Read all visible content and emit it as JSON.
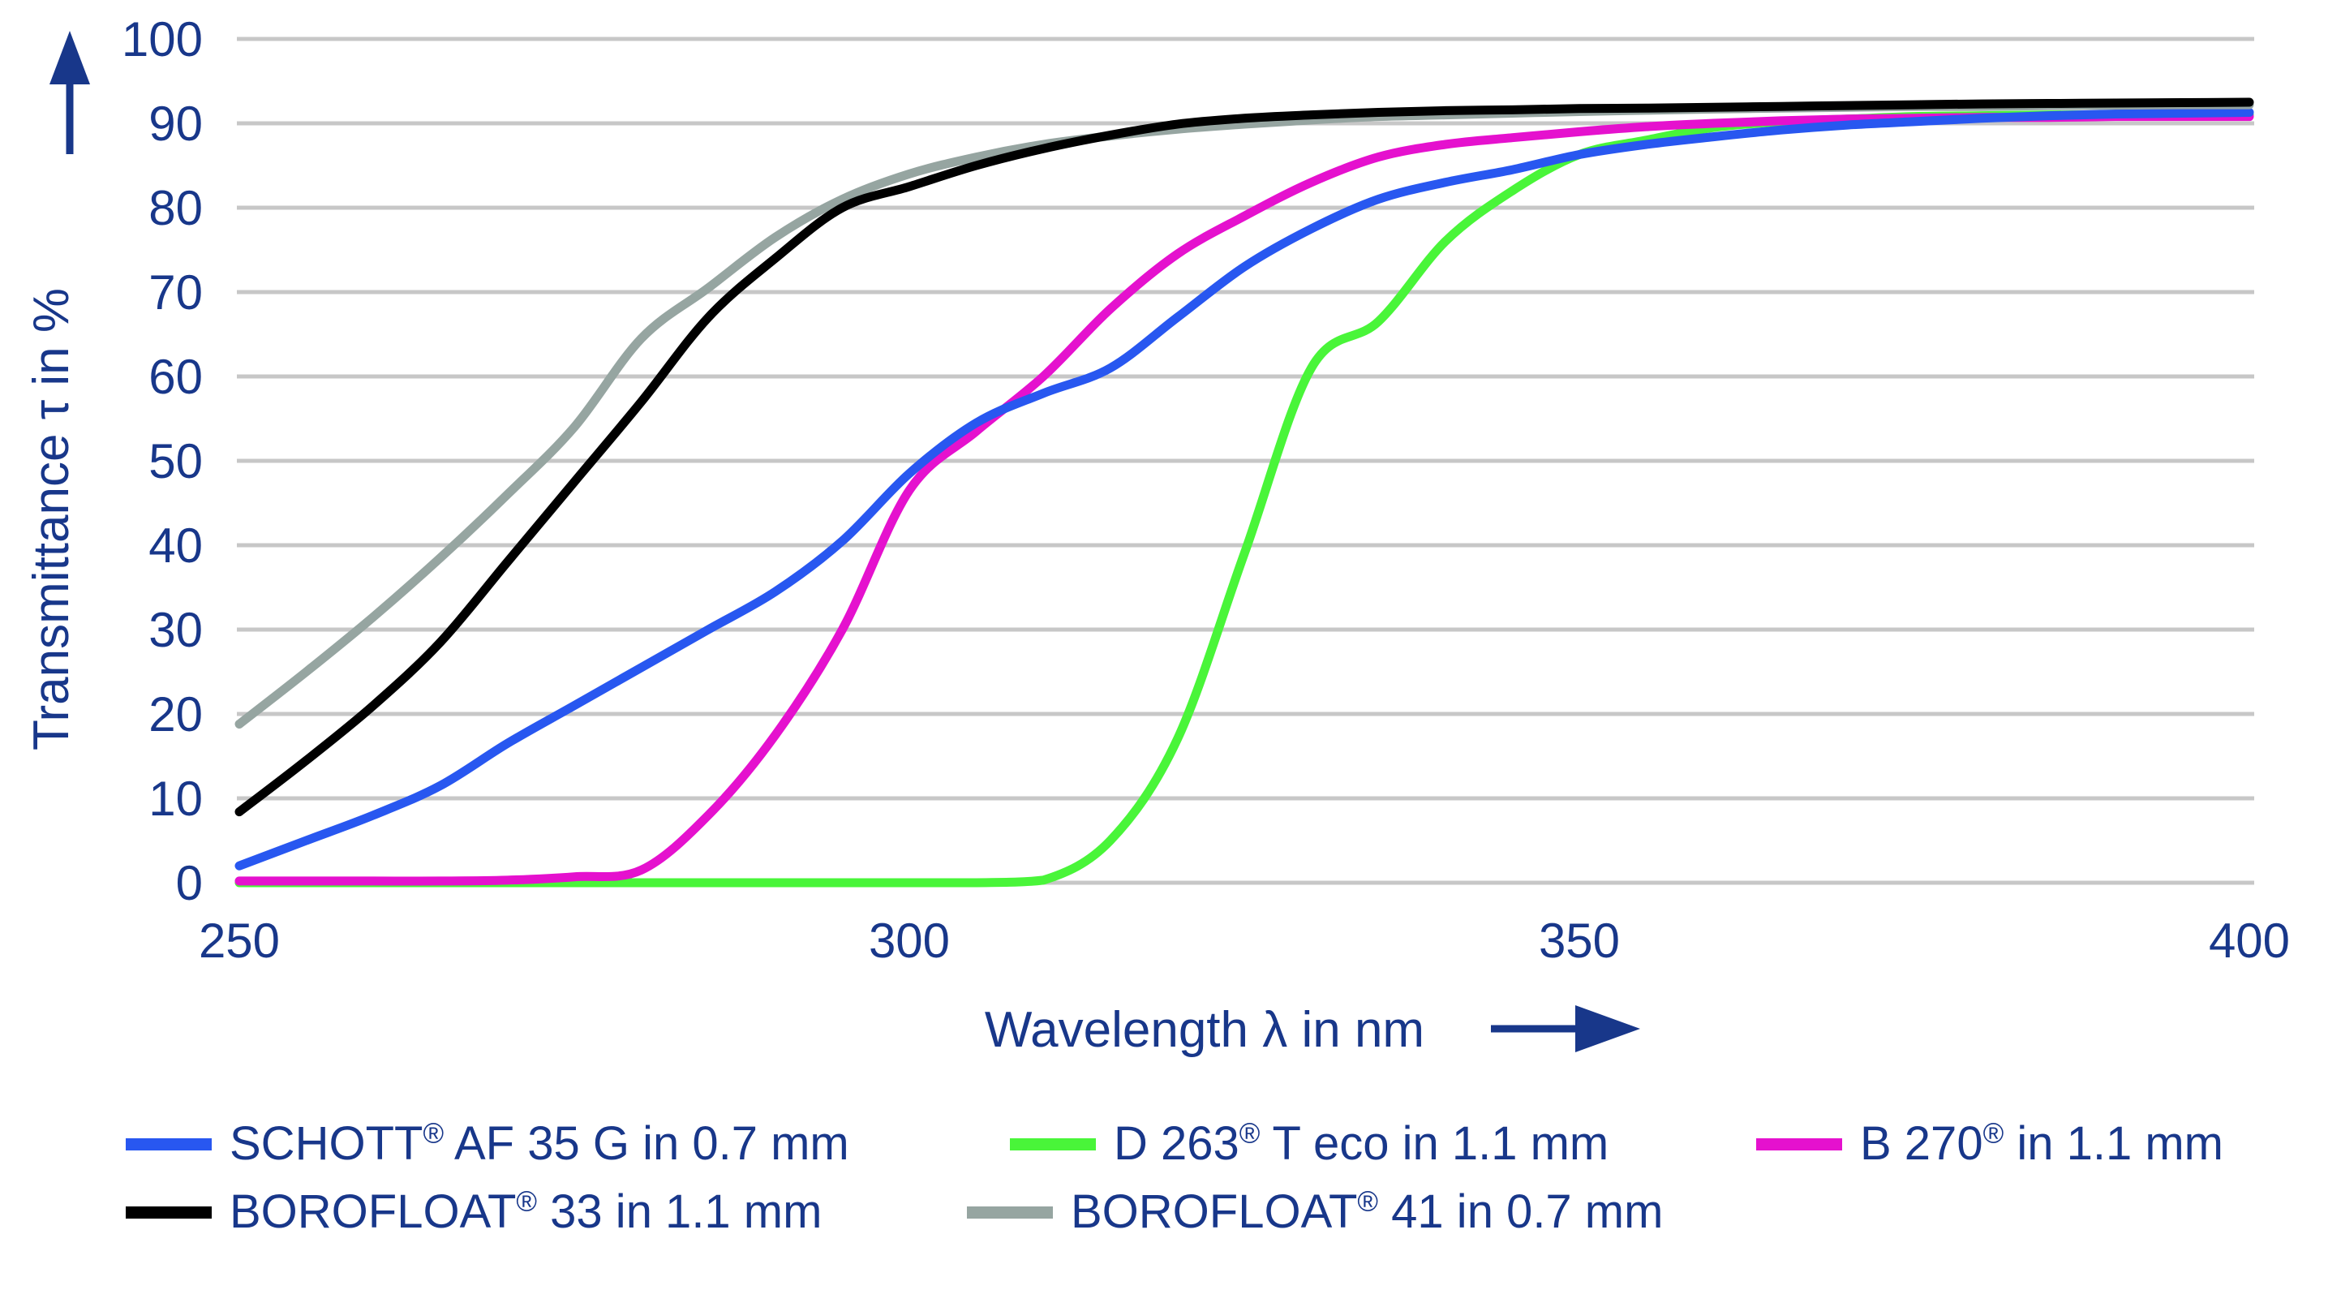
{
  "y_axis": {
    "label": "Transmittance τ in %",
    "ticks": [
      100,
      90,
      80,
      70,
      60,
      50,
      40,
      30,
      20,
      10,
      0
    ],
    "min": 0,
    "max": 100
  },
  "x_axis": {
    "label": "Wavelength λ in nm",
    "ticks": [
      250,
      300,
      350,
      400
    ],
    "min": 250,
    "max": 400
  },
  "colors": {
    "axis_text": "#18378a",
    "grid": "#c7c7c7",
    "blue": "#2857f0",
    "green": "#49f539",
    "magenta": "#e511ce",
    "black": "#000000",
    "gray": "#96a5a1"
  },
  "legend": {
    "reg_symbol": "®",
    "rows": [
      [
        {
          "color": "blue",
          "pre": "SCHOTT",
          "post": " AF 35 G in 0.7 mm"
        },
        {
          "color": "green",
          "pre": "D 263",
          "post": " T eco in 1.1 mm"
        },
        {
          "color": "magenta",
          "pre": "B 270",
          "post": " in 1.1 mm"
        }
      ],
      [
        {
          "color": "black",
          "pre": "BOROFLOAT",
          "post": " 33 in 1.1 mm"
        },
        {
          "color": "gray",
          "pre": "BOROFLOAT",
          "post": " 41 in 0.7 mm"
        }
      ]
    ]
  },
  "chart_data": {
    "type": "line",
    "title": "",
    "xlabel": "Wavelength λ in nm",
    "ylabel": "Transmittance τ in %",
    "xlim": [
      250,
      400
    ],
    "ylim": [
      0,
      100
    ],
    "grid": "horizontal",
    "legend_position": "bottom",
    "x": [
      250,
      255,
      260,
      265,
      270,
      275,
      280,
      285,
      290,
      295,
      300,
      305,
      310,
      315,
      320,
      325,
      330,
      335,
      340,
      345,
      350,
      355,
      360,
      365,
      370,
      375,
      380,
      385,
      390,
      395,
      400
    ],
    "series": [
      {
        "name": "SCHOTT® AF 35 G in 0.7 mm",
        "color": "blue",
        "values": [
          2,
          5,
          8,
          11.5,
          16.5,
          21,
          25.5,
          30,
          34.5,
          40.5,
          48.5,
          54.5,
          58,
          61,
          67,
          73,
          77.5,
          81,
          83,
          84.5,
          86.3,
          87.5,
          88.4,
          89.2,
          89.8,
          90.2,
          90.6,
          90.9,
          91.1,
          91.2,
          91.3
        ]
      },
      {
        "name": "D 263® T eco in 1.1 mm",
        "color": "green",
        "values": [
          0,
          0,
          0,
          0,
          0,
          0,
          0,
          0,
          0,
          0,
          0,
          0,
          0.3,
          5,
          17,
          39,
          61,
          66.5,
          76,
          82,
          86.3,
          88,
          89.5,
          90.2,
          90.5,
          90.8,
          90.9,
          91,
          91,
          91,
          91
        ]
      },
      {
        "name": "B 270® in 1.1 mm",
        "color": "magenta",
        "values": [
          0.2,
          0.2,
          0.2,
          0.2,
          0.3,
          0.7,
          1.5,
          8,
          17.5,
          30,
          46.5,
          53.5,
          60,
          68,
          74.5,
          79,
          83,
          86,
          87.5,
          88.3,
          89,
          89.6,
          90,
          90.3,
          90.5,
          90.6,
          90.7,
          90.7,
          90.8,
          90.8,
          90.8
        ]
      },
      {
        "name": "BOROFLOAT® 33 in 1.1 mm",
        "color": "black",
        "values": [
          8.4,
          14.5,
          21,
          28.5,
          38,
          47.5,
          57,
          67,
          74,
          80,
          82.5,
          85,
          87,
          88.6,
          89.9,
          90.6,
          91,
          91.3,
          91.5,
          91.6,
          91.75,
          91.8,
          91.9,
          92,
          92.1,
          92.2,
          92.3,
          92.35,
          92.4,
          92.45,
          92.5
        ]
      },
      {
        "name": "BOROFLOAT® 41 in 0.7 mm",
        "color": "gray",
        "values": [
          18.8,
          25,
          31.5,
          38.5,
          46,
          54,
          64.5,
          70.5,
          76.5,
          81,
          84,
          86,
          87.5,
          88.5,
          89.3,
          89.9,
          90.4,
          90.8,
          91,
          91.2,
          91.4,
          91.55,
          91.7,
          91.8,
          91.9,
          92,
          92,
          92.1,
          92.15,
          92.2,
          92.2
        ]
      }
    ]
  }
}
